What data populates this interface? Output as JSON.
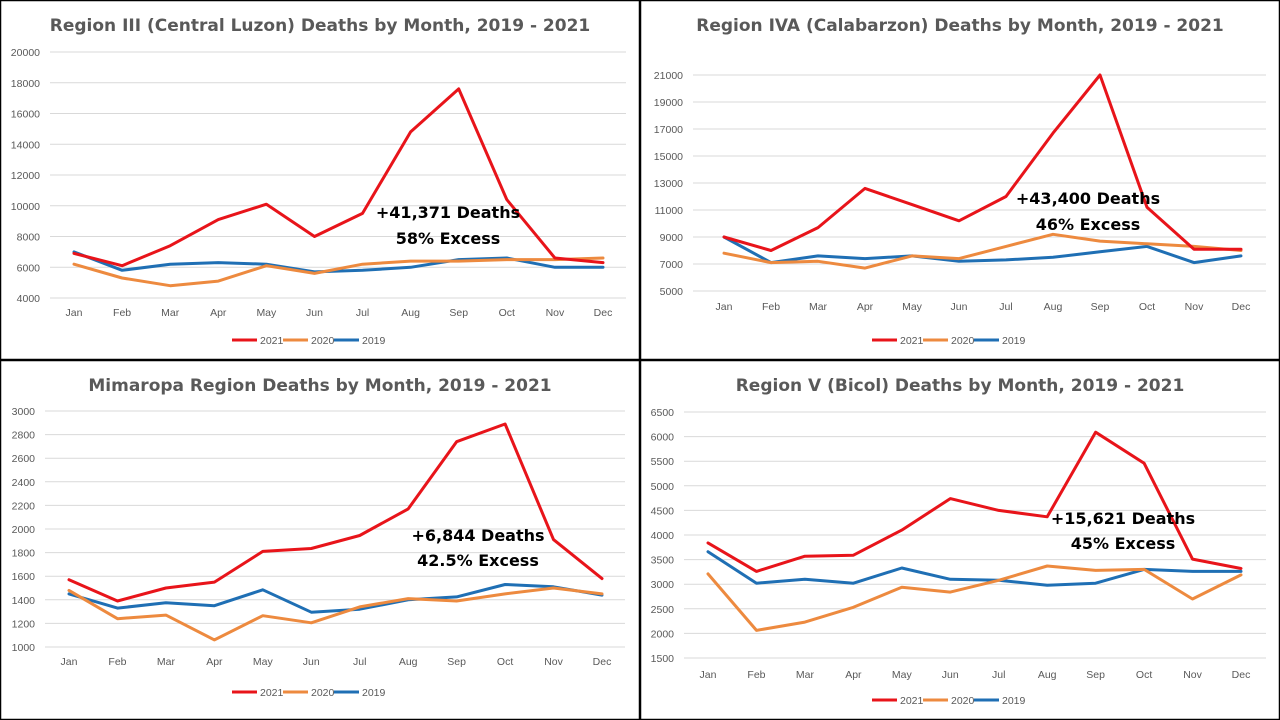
{
  "colors": {
    "2021": "#e8141a",
    "2020": "#ed8a3f",
    "2019": "#1f6fb4",
    "grid": "#d9d9d9",
    "border": "#000000"
  },
  "chart_data": [
    {
      "type": "line",
      "title": "Region III (Central Luzon) Deaths by Month, 2019 - 2021",
      "categories": [
        "Jan",
        "Feb",
        "Mar",
        "Apr",
        "May",
        "Jun",
        "Jul",
        "Aug",
        "Sep",
        "Oct",
        "Nov",
        "Dec"
      ],
      "ylim": [
        4000,
        20000
      ],
      "yticks": [
        4000,
        6000,
        8000,
        10000,
        12000,
        14000,
        16000,
        18000,
        20000
      ],
      "grid": true,
      "legend": "bottom",
      "series": [
        {
          "name": "2021",
          "values": [
            6900,
            6100,
            7400,
            9100,
            10100,
            8000,
            9500,
            14800,
            17600,
            10400,
            6600,
            6300
          ]
        },
        {
          "name": "2020",
          "values": [
            6200,
            5300,
            4800,
            5100,
            6100,
            5600,
            6200,
            6400,
            6400,
            6500,
            6500,
            6600
          ]
        },
        {
          "name": "2019",
          "values": [
            7000,
            5800,
            6200,
            6300,
            6200,
            5700,
            5800,
            6000,
            6500,
            6600,
            6000,
            6000
          ]
        }
      ],
      "annotations": [
        "+41,371 Deaths",
        "58% Excess"
      ]
    },
    {
      "type": "line",
      "title": "Region IVA (Calabarzon)  Deaths by Month, 2019 - 2021",
      "categories": [
        "Jan",
        "Feb",
        "Mar",
        "Apr",
        "May",
        "Jun",
        "Jul",
        "Aug",
        "Sep",
        "Oct",
        "Nov",
        "Dec"
      ],
      "ylim": [
        5000,
        21000
      ],
      "yticks": [
        5000,
        7000,
        9000,
        11000,
        13000,
        15000,
        17000,
        19000,
        21000
      ],
      "grid": true,
      "legend": "bottom",
      "series": [
        {
          "name": "2021",
          "values": [
            9000,
            8000,
            9700,
            12600,
            11400,
            10200,
            12000,
            16700,
            21000,
            11200,
            8100,
            8100
          ]
        },
        {
          "name": "2020",
          "values": [
            7800,
            7100,
            7200,
            6700,
            7600,
            7400,
            8300,
            9200,
            8700,
            8500,
            8300,
            8000
          ]
        },
        {
          "name": "2019",
          "values": [
            9000,
            7100,
            7600,
            7400,
            7600,
            7200,
            7300,
            7500,
            7900,
            8300,
            7100,
            7600
          ]
        }
      ],
      "annotations": [
        "+43,400 Deaths",
        "46% Excess"
      ]
    },
    {
      "type": "line",
      "title": "Mimaropa Region  Deaths by Month, 2019 - 2021",
      "categories": [
        "Jan",
        "Feb",
        "Mar",
        "Apr",
        "May",
        "Jun",
        "Jul",
        "Aug",
        "Sep",
        "Oct",
        "Nov",
        "Dec"
      ],
      "ylim": [
        1000,
        3000
      ],
      "yticks": [
        1000,
        1200,
        1400,
        1600,
        1800,
        2000,
        2200,
        2400,
        2600,
        2800,
        3000
      ],
      "grid": true,
      "legend": "bottom",
      "series": [
        {
          "name": "2021",
          "values": [
            1570,
            1390,
            1500,
            1550,
            1810,
            1835,
            1945,
            2170,
            2740,
            2890,
            1910,
            1580
          ]
        },
        {
          "name": "2020",
          "values": [
            1480,
            1240,
            1270,
            1060,
            1265,
            1205,
            1340,
            1410,
            1390,
            1450,
            1500,
            1450
          ]
        },
        {
          "name": "2019",
          "values": [
            1450,
            1330,
            1375,
            1350,
            1485,
            1295,
            1320,
            1400,
            1425,
            1530,
            1510,
            1440
          ]
        }
      ],
      "annotations": [
        "+6,844 Deaths",
        "42.5% Excess"
      ]
    },
    {
      "type": "line",
      "title": "Region V (Bicol) Deaths by Month, 2019 - 2021",
      "categories": [
        "Jan",
        "Feb",
        "Mar",
        "Apr",
        "May",
        "Jun",
        "Jul",
        "Aug",
        "Sep",
        "Oct",
        "Nov",
        "Dec"
      ],
      "ylim": [
        1500,
        6500
      ],
      "yticks": [
        1500,
        2000,
        2500,
        3000,
        3500,
        4000,
        4500,
        5000,
        5500,
        6000,
        6500
      ],
      "grid": true,
      "legend": "bottom",
      "series": [
        {
          "name": "2021",
          "values": [
            3840,
            3260,
            3570,
            3590,
            4100,
            4740,
            4500,
            4370,
            6090,
            5460,
            3510,
            3320
          ]
        },
        {
          "name": "2020",
          "values": [
            3210,
            2060,
            2230,
            2530,
            2940,
            2840,
            3080,
            3370,
            3280,
            3300,
            2700,
            3190
          ]
        },
        {
          "name": "2019",
          "values": [
            3660,
            3020,
            3100,
            3020,
            3330,
            3100,
            3080,
            2980,
            3020,
            3300,
            3260,
            3260
          ]
        }
      ],
      "annotations": [
        "+15,621 Deaths",
        "45% Excess"
      ]
    }
  ]
}
